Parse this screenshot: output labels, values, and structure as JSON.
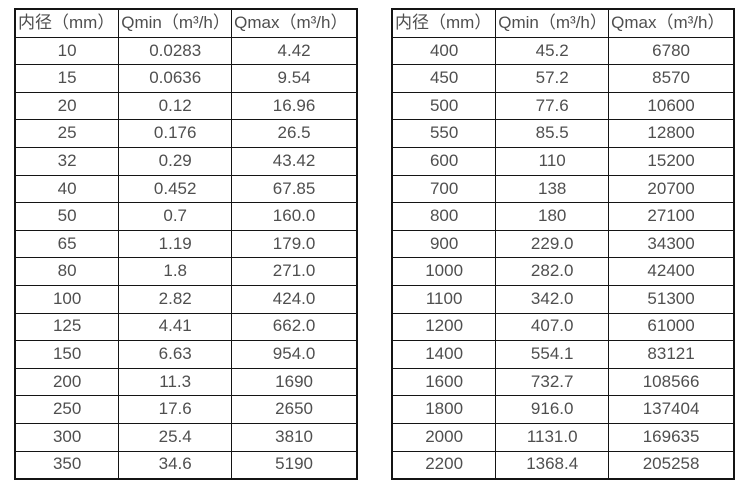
{
  "colors": {
    "border": "#141414",
    "text": "#4f4f4f",
    "background": "#ffffff"
  },
  "tables": [
    {
      "name": "flow-rates-small-diameters",
      "headers": [
        "内径（mm）",
        "Qmin（m³/h）",
        "Qmax（m³/h）"
      ],
      "rows": [
        [
          "10",
          "0.0283",
          "4.42"
        ],
        [
          "15",
          "0.0636",
          "9.54"
        ],
        [
          "20",
          "0.12",
          "16.96"
        ],
        [
          "25",
          "0.176",
          "26.5"
        ],
        [
          "32",
          "0.29",
          "43.42"
        ],
        [
          "40",
          "0.452",
          "67.85"
        ],
        [
          "50",
          "0.7",
          "160.0"
        ],
        [
          "65",
          "1.19",
          "179.0"
        ],
        [
          "80",
          "1.8",
          "271.0"
        ],
        [
          "100",
          "2.82",
          "424.0"
        ],
        [
          "125",
          "4.41",
          "662.0"
        ],
        [
          "150",
          "6.63",
          "954.0"
        ],
        [
          "200",
          "11.3",
          "1690"
        ],
        [
          "250",
          "17.6",
          "2650"
        ],
        [
          "300",
          "25.4",
          "3810"
        ],
        [
          "350",
          "34.6",
          "5190"
        ]
      ]
    },
    {
      "name": "flow-rates-large-diameters",
      "headers": [
        "内径（mm）",
        "Qmin（m³/h）",
        "Qmax（m³/h）"
      ],
      "rows": [
        [
          "400",
          "45.2",
          "6780"
        ],
        [
          "450",
          "57.2",
          "8570"
        ],
        [
          "500",
          "77.6",
          "10600"
        ],
        [
          "550",
          "85.5",
          "12800"
        ],
        [
          "600",
          "110",
          "15200"
        ],
        [
          "700",
          "138",
          "20700"
        ],
        [
          "800",
          "180",
          "27100"
        ],
        [
          "900",
          "229.0",
          "34300"
        ],
        [
          "1000",
          "282.0",
          "42400"
        ],
        [
          "1100",
          "342.0",
          "51300"
        ],
        [
          "1200",
          "407.0",
          "61000"
        ],
        [
          "1400",
          "554.1",
          "83121"
        ],
        [
          "1600",
          "732.7",
          "108566"
        ],
        [
          "1800",
          "916.0",
          "137404"
        ],
        [
          "2000",
          "1131.0",
          "169635"
        ],
        [
          "2200",
          "1368.4",
          "205258"
        ]
      ]
    }
  ]
}
